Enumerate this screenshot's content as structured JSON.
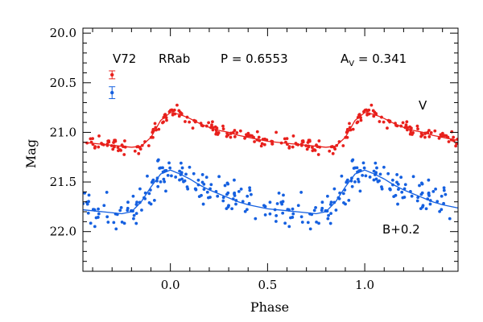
{
  "chart_data": {
    "type": "scatter",
    "star": "V72",
    "variable_type": "RRab",
    "period_text": "P = 0.6553",
    "amplitude_symbol": "A",
    "amplitude_subscript": "V",
    "amplitude_value_text": " = 0.341",
    "xlabel": "Phase",
    "ylabel": "Mag",
    "xlim": [
      -0.45,
      1.48
    ],
    "ylim": [
      22.4,
      19.95
    ],
    "y_inverted": true,
    "xticks": [
      0.0,
      0.5,
      1.0
    ],
    "xtick_labels": [
      "0.0",
      "0.5",
      "1.0"
    ],
    "yticks": [
      20.0,
      20.5,
      21.0,
      21.5,
      22.0
    ],
    "ytick_labels": [
      "20.0",
      "20.5",
      "21.0",
      "21.5",
      "22.0"
    ],
    "x_minor_step": 0.1,
    "y_minor_step": 0.1,
    "grid": false,
    "error_bars": [
      {
        "series": "V",
        "x": -0.3,
        "y": 20.42,
        "err": 0.04,
        "color": "#e8201c"
      },
      {
        "series": "B+0.2",
        "x": -0.3,
        "y": 20.6,
        "err": 0.06,
        "color": "#1560e0"
      }
    ],
    "series": [
      {
        "name": "V",
        "color": "#e8201c",
        "label_position": "right",
        "fit_x": [
          0.0,
          0.05,
          0.1,
          0.15,
          0.2,
          0.25,
          0.3,
          0.35,
          0.4,
          0.45,
          0.5,
          0.55,
          0.6,
          0.65,
          0.7,
          0.75,
          0.8,
          0.85,
          0.9,
          0.95,
          1.0
        ],
        "fit_y": [
          20.8,
          20.82,
          20.86,
          20.91,
          20.95,
          20.98,
          21.0,
          21.03,
          21.05,
          21.07,
          21.09,
          21.1,
          21.11,
          21.12,
          21.13,
          21.14,
          21.15,
          21.14,
          21.05,
          20.88,
          20.8
        ],
        "scatter": 0.035,
        "n_points_per_cycle": 140
      },
      {
        "name": "B+0.2",
        "color": "#1560e0",
        "label_position": "bottom-right",
        "fit_x": [
          0.0,
          0.05,
          0.1,
          0.15,
          0.2,
          0.25,
          0.3,
          0.35,
          0.4,
          0.45,
          0.5,
          0.55,
          0.6,
          0.65,
          0.7,
          0.75,
          0.8,
          0.85,
          0.9,
          0.95,
          1.0
        ],
        "fit_y": [
          21.38,
          21.42,
          21.47,
          21.53,
          21.58,
          21.62,
          21.66,
          21.7,
          21.73,
          21.75,
          21.77,
          21.78,
          21.79,
          21.8,
          21.81,
          21.82,
          21.8,
          21.7,
          21.55,
          21.42,
          21.38
        ],
        "scatter": 0.09,
        "n_points_per_cycle": 150
      }
    ]
  }
}
